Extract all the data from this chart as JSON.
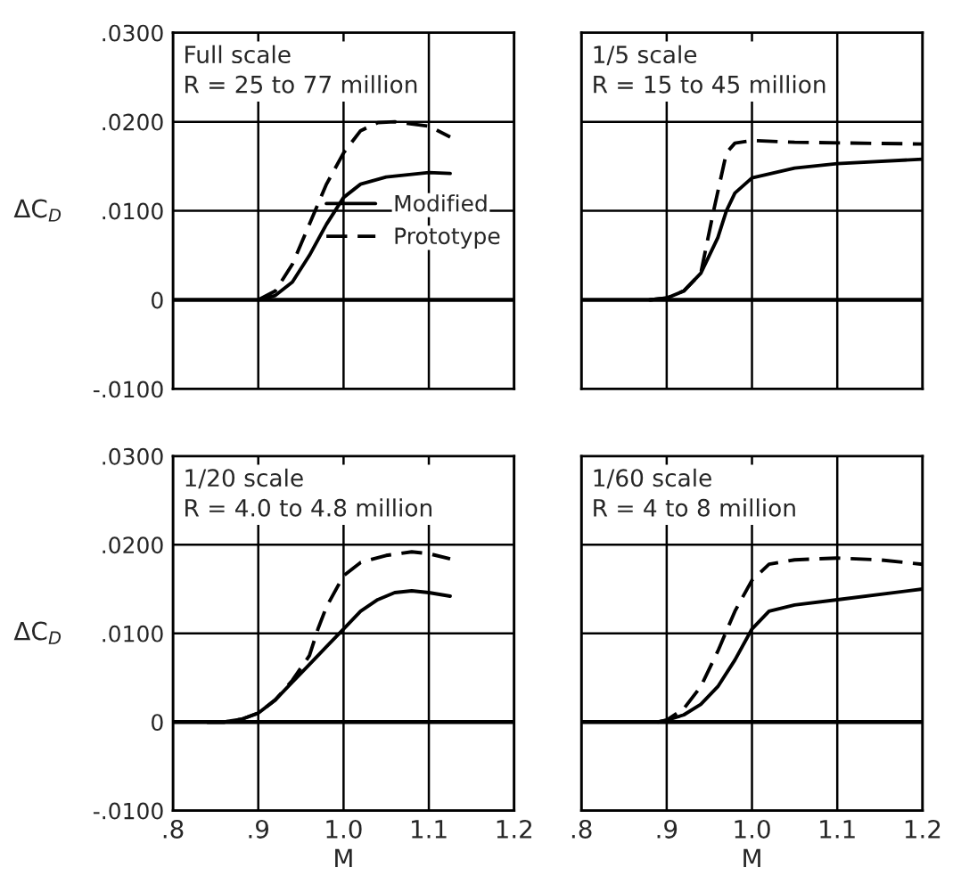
{
  "chart_data": [
    {
      "type": "line",
      "ylabel": "ΔC$_{D}$",
      "annotations": [
        "Full scale",
        "R = 25 to 77 million"
      ],
      "xlim": [
        0.8,
        1.2
      ],
      "ylim": [
        -0.01,
        0.03
      ],
      "xticks": [
        {
          "value": 0.8,
          "label": null
        },
        {
          "value": 0.9,
          "label": null
        },
        {
          "value": 1.0,
          "label": null
        },
        {
          "value": 1.1,
          "label": null
        },
        {
          "value": 1.2,
          "label": null
        }
      ],
      "yticks": [
        {
          "value": -0.01,
          "label": "-.0100"
        },
        0,
        {
          "value": 0.01,
          "label": ".0100"
        },
        {
          "value": 0.02,
          "label": ".0200"
        },
        {
          "value": 0.03,
          "label": ".0300"
        }
      ],
      "tick_labels": "y",
      "grid": true,
      "legend": "right",
      "series": [
        {
          "name": "Modified",
          "color": "#000000",
          "line_style": "solid",
          "x": [
            0.9,
            0.92,
            0.94,
            0.96,
            0.98,
            1.0,
            1.02,
            1.05,
            1.1,
            1.125
          ],
          "values": [
            0,
            0.0005,
            0.002,
            0.005,
            0.0085,
            0.0115,
            0.013,
            0.0138,
            0.0143,
            0.0142
          ]
        },
        {
          "name": "Prototype",
          "color": "#000000",
          "line_style": "dashed",
          "x": [
            0.9,
            0.92,
            0.94,
            0.96,
            0.98,
            1.0,
            1.02,
            1.04,
            1.06,
            1.1,
            1.125
          ],
          "values": [
            0,
            0.001,
            0.004,
            0.0085,
            0.013,
            0.0165,
            0.019,
            0.0199,
            0.02,
            0.0195,
            0.0183
          ]
        }
      ]
    },
    {
      "type": "line",
      "annotations": [
        "1/5 scale",
        "R = 15 to 45 million"
      ],
      "xlim": [
        0.8,
        1.2
      ],
      "ylim": [
        -0.01,
        0.03
      ],
      "xticks": [
        {
          "value": 0.8,
          "label": null
        },
        {
          "value": 0.9,
          "label": null
        },
        {
          "value": 1.0,
          "label": null
        },
        {
          "value": 1.1,
          "label": null
        },
        {
          "value": 1.2,
          "label": null
        }
      ],
      "yticks": [
        {
          "value": -0.01,
          "label": null
        },
        {
          "value": 0,
          "label": null
        },
        {
          "value": 0.01,
          "label": null
        },
        {
          "value": 0.02,
          "label": null
        },
        {
          "value": 0.03,
          "label": null
        }
      ],
      "tick_labels": false,
      "grid": true,
      "series": [
        {
          "color": "#000000",
          "line_style": "solid",
          "x": [
            0.88,
            0.9,
            0.92,
            0.94,
            0.96,
            0.97,
            0.98,
            1.0,
            1.05,
            1.1,
            1.2
          ],
          "values": [
            0,
            0.0002,
            0.001,
            0.003,
            0.007,
            0.01,
            0.012,
            0.0137,
            0.0148,
            0.0153,
            0.0158
          ]
        },
        {
          "color": "#000000",
          "line_style": "dashed",
          "x": [
            0.88,
            0.9,
            0.92,
            0.94,
            0.955,
            0.97,
            0.98,
            1.0,
            1.05,
            1.2
          ],
          "values": [
            0,
            0.0002,
            0.001,
            0.003,
            0.01,
            0.0165,
            0.0176,
            0.0179,
            0.0177,
            0.0175
          ]
        }
      ]
    },
    {
      "type": "line",
      "ylabel": "ΔC$_{D}$",
      "xlabel": "M",
      "annotations": [
        "1/20 scale",
        "R = 4.0 to 4.8 million"
      ],
      "xlim": [
        0.8,
        1.2
      ],
      "ylim": [
        -0.01,
        0.03
      ],
      "xticks": [
        {
          "value": 0.8,
          "label": ".8"
        },
        {
          "value": 0.9,
          "label": ".9"
        },
        {
          "value": 1.0,
          "label": "1.0"
        },
        {
          "value": 1.1,
          "label": "1.1"
        },
        {
          "value": 1.2,
          "label": "1.2"
        }
      ],
      "yticks": [
        {
          "value": -0.01,
          "label": "-.0100"
        },
        0,
        {
          "value": 0.01,
          "label": ".0100"
        },
        {
          "value": 0.02,
          "label": ".0200"
        },
        {
          "value": 0.03,
          "label": ".0300"
        }
      ],
      "grid": true,
      "series": [
        {
          "color": "#000000",
          "line_style": "solid",
          "x": [
            0.84,
            0.86,
            0.88,
            0.9,
            0.92,
            0.94,
            0.96,
            0.98,
            1.0,
            1.02,
            1.04,
            1.06,
            1.08,
            1.1,
            1.125
          ],
          "values": [
            0,
            0,
            0.0003,
            0.001,
            0.0025,
            0.0045,
            0.0065,
            0.0085,
            0.0105,
            0.0125,
            0.0138,
            0.0146,
            0.0148,
            0.0146,
            0.0142
          ]
        },
        {
          "color": "#000000",
          "line_style": "dashed",
          "x": [
            0.84,
            0.86,
            0.88,
            0.9,
            0.92,
            0.94,
            0.96,
            0.97,
            0.98,
            1.0,
            1.02,
            1.05,
            1.08,
            1.1,
            1.125
          ],
          "values": [
            0,
            0,
            0.0003,
            0.001,
            0.0025,
            0.0047,
            0.0075,
            0.0105,
            0.013,
            0.0165,
            0.018,
            0.0188,
            0.0192,
            0.019,
            0.0184
          ]
        }
      ]
    },
    {
      "type": "line",
      "xlabel": "M",
      "annotations": [
        "1/60 scale",
        "R = 4 to 8 million"
      ],
      "xlim": [
        0.8,
        1.2
      ],
      "ylim": [
        -0.01,
        0.03
      ],
      "xticks": [
        {
          "value": 0.8,
          "label": ".8"
        },
        {
          "value": 0.9,
          "label": ".9"
        },
        {
          "value": 1.0,
          "label": "1.0"
        },
        {
          "value": 1.1,
          "label": "1.1"
        },
        {
          "value": 1.2,
          "label": "1.2"
        }
      ],
      "yticks": [
        {
          "value": -0.01,
          "label": null
        },
        {
          "value": 0,
          "label": null
        },
        {
          "value": 0.01,
          "label": null
        },
        {
          "value": 0.02,
          "label": null
        },
        {
          "value": 0.03,
          "label": null
        }
      ],
      "tick_labels": "x",
      "grid": true,
      "series": [
        {
          "color": "#000000",
          "line_style": "solid",
          "x": [
            0.89,
            0.9,
            0.92,
            0.94,
            0.96,
            0.98,
            1.0,
            1.02,
            1.05,
            1.1,
            1.2
          ],
          "values": [
            0,
            0.0002,
            0.0008,
            0.002,
            0.004,
            0.007,
            0.0105,
            0.0125,
            0.0132,
            0.0138,
            0.015
          ]
        },
        {
          "color": "#000000",
          "line_style": "dashed",
          "x": [
            0.89,
            0.9,
            0.92,
            0.94,
            0.96,
            0.98,
            1.0,
            1.02,
            1.05,
            1.1,
            1.15,
            1.2
          ],
          "values": [
            0,
            0.0002,
            0.0015,
            0.004,
            0.008,
            0.0125,
            0.016,
            0.0178,
            0.0183,
            0.0185,
            0.0183,
            0.0178
          ]
        }
      ]
    }
  ]
}
